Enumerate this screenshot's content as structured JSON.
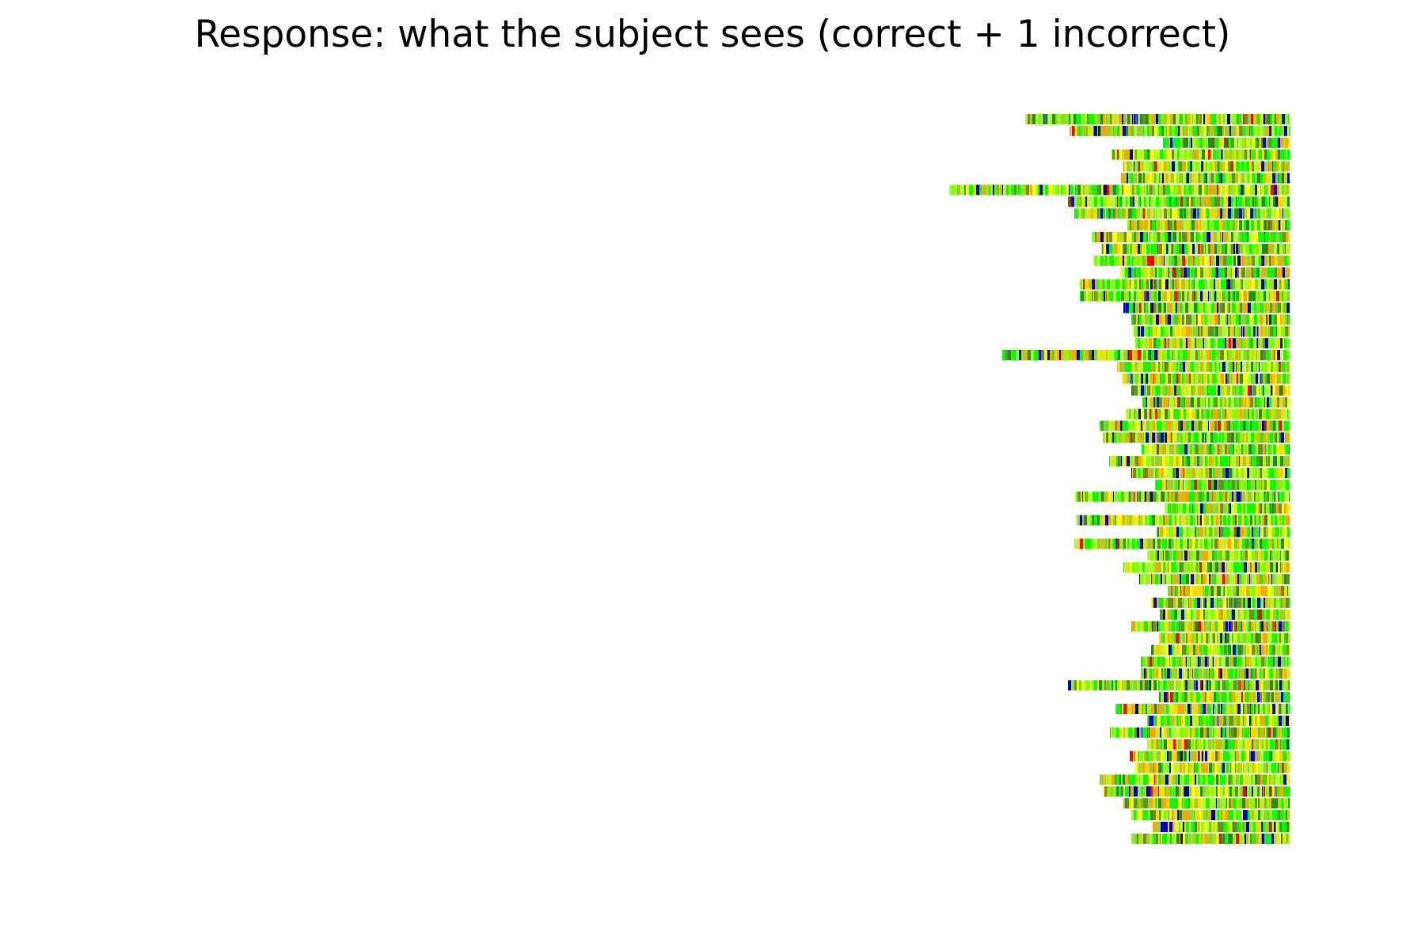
{
  "chart_data": {
    "type": "heatmap",
    "title": "Response: what the subject sees (correct + 1 incorrect)",
    "xlabel": "",
    "ylabel": "",
    "axes_visible": false,
    "grid": false,
    "legend": "none",
    "alignment": "right",
    "rows": 62,
    "palette": [
      "#00ff00",
      "#7fff00",
      "#adff2f",
      "#9acd32",
      "#ffd700",
      "#ffa500",
      "#ffff00",
      "#0000cd",
      "#228b22",
      "#ff0000",
      "#00008b",
      "#6b8e23"
    ],
    "row_lengths": [
      334,
      278,
      160,
      225,
      210,
      213,
      430,
      280,
      272,
      205,
      250,
      238,
      247,
      214,
      265,
      265,
      210,
      200,
      197,
      195,
      363,
      218,
      211,
      200,
      186,
      207,
      240,
      236,
      187,
      228,
      200,
      170,
      271,
      158,
      270,
      168,
      272,
      180,
      210,
      190,
      154,
      175,
      164,
      200,
      165,
      175,
      188,
      188,
      280,
      165,
      220,
      180,
      227,
      180,
      202,
      195,
      240,
      235,
      210,
      200,
      173,
      200
    ]
  }
}
